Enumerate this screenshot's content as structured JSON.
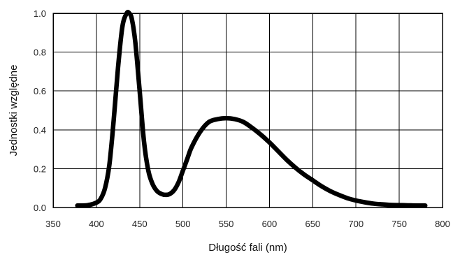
{
  "chart_data": {
    "type": "line",
    "xlabel": "Długość fali (nm)",
    "ylabel": "Jednostki względne",
    "xlim": [
      350,
      800
    ],
    "ylim": [
      0.0,
      1.0
    ],
    "x_ticks": [
      "350",
      "400",
      "450",
      "500",
      "550",
      "600",
      "650",
      "700",
      "750",
      "800"
    ],
    "y_ticks": [
      "0.0",
      "0.2",
      "0.4",
      "0.6",
      "0.8",
      "1.0"
    ],
    "grid": true,
    "legend": "none",
    "line_color": "#000000",
    "series": [
      {
        "x": [
          378,
          390,
          400,
          405,
          410,
          415,
          420,
          425,
          430,
          435,
          438,
          441,
          445,
          450,
          455,
          460,
          465,
          470,
          475,
          480,
          485,
          490,
          495,
          500,
          505,
          510,
          520,
          530,
          540,
          550,
          560,
          570,
          580,
          590,
          600,
          610,
          620,
          630,
          640,
          650,
          660,
          670,
          680,
          690,
          700,
          710,
          720,
          730,
          740,
          750,
          760,
          770,
          780
        ],
        "y": [
          0.01,
          0.012,
          0.025,
          0.045,
          0.1,
          0.22,
          0.45,
          0.72,
          0.93,
          1.0,
          1.0,
          0.97,
          0.85,
          0.6,
          0.34,
          0.19,
          0.12,
          0.085,
          0.07,
          0.065,
          0.07,
          0.09,
          0.13,
          0.19,
          0.25,
          0.31,
          0.39,
          0.44,
          0.455,
          0.46,
          0.455,
          0.44,
          0.41,
          0.375,
          0.335,
          0.29,
          0.245,
          0.205,
          0.17,
          0.14,
          0.11,
          0.085,
          0.065,
          0.048,
          0.036,
          0.027,
          0.02,
          0.016,
          0.013,
          0.012,
          0.011,
          0.01,
          0.01
        ]
      }
    ]
  }
}
